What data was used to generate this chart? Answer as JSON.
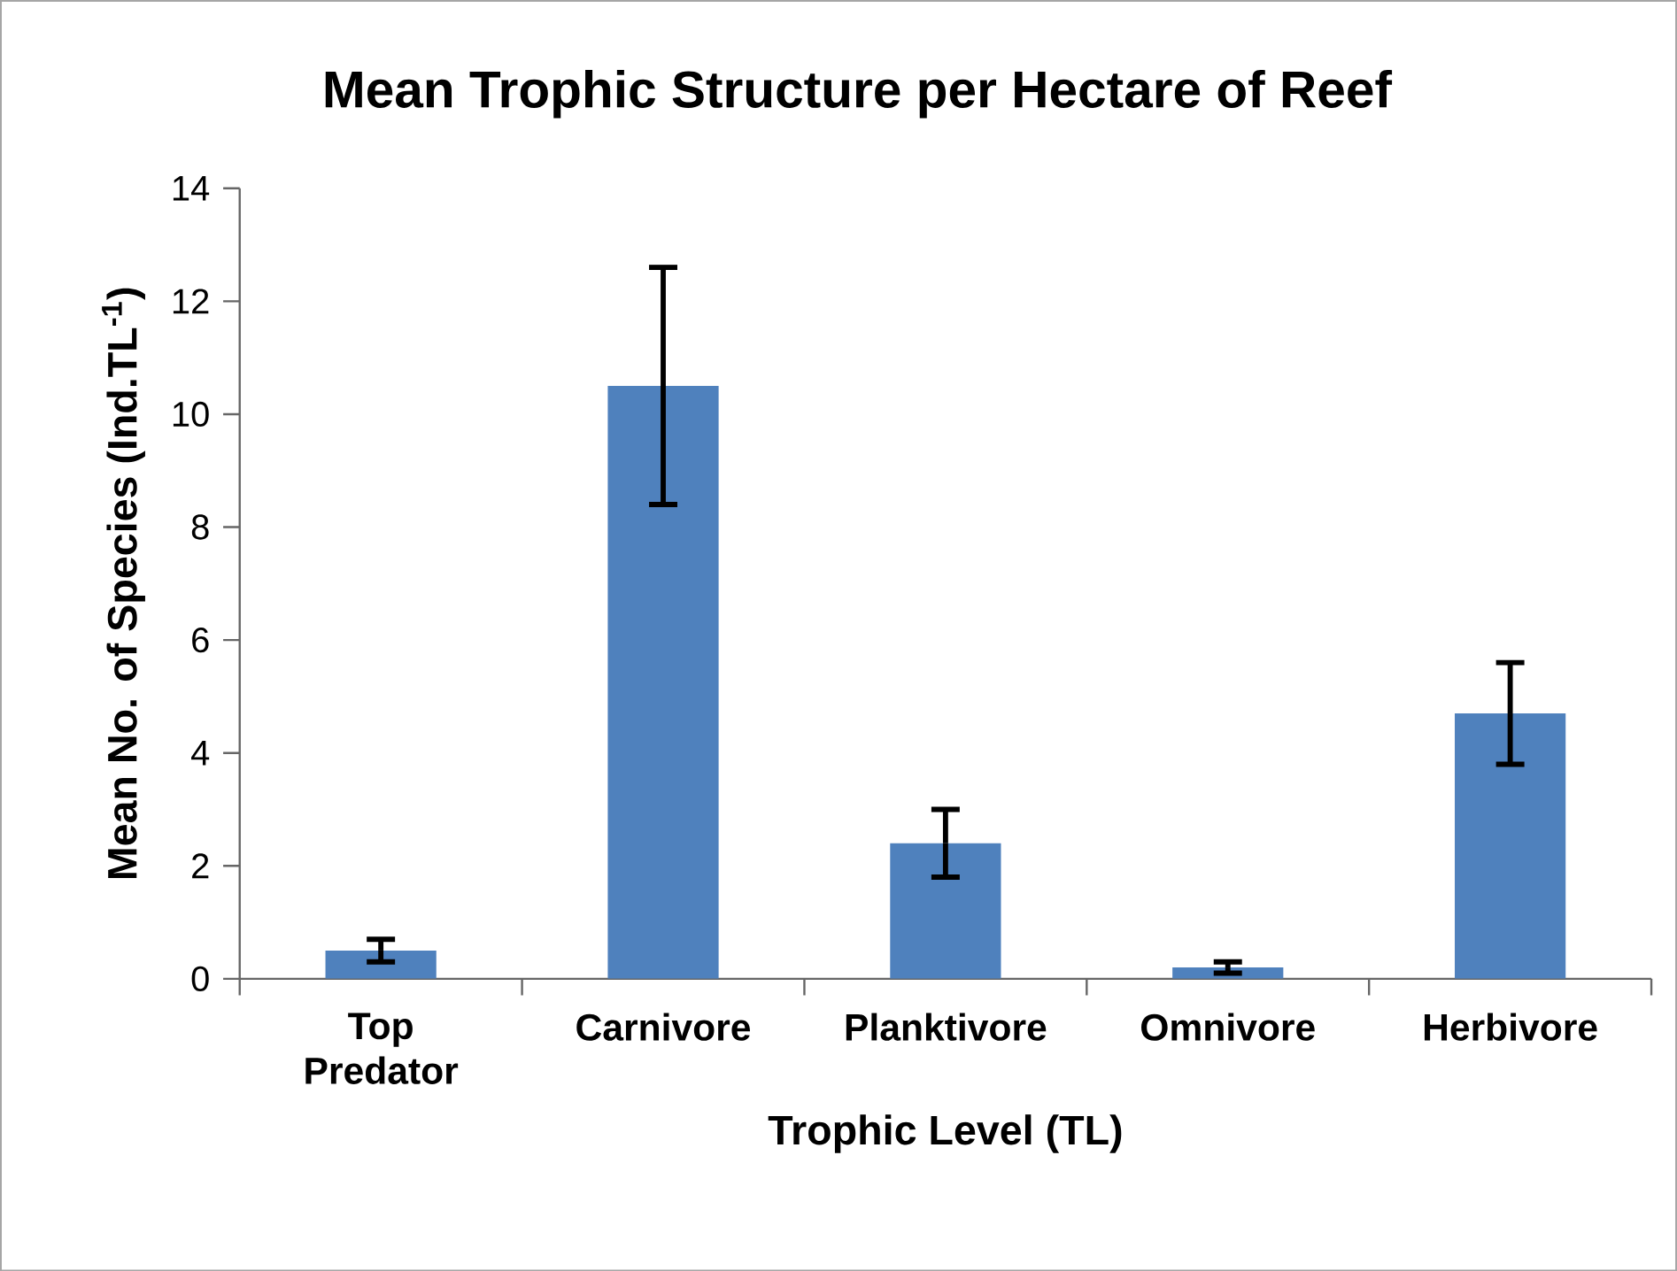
{
  "chart_data": {
    "type": "bar",
    "title": "Mean Trophic Structure per Hectare of Reef",
    "xlabel": "Trophic Level (TL)",
    "ylabel": "Mean No. of Species (Ind.TL$^{-1}$)",
    "categories": [
      "Top Predator",
      "Carnivore",
      "Planktivore",
      "Omnivore",
      "Herbivore"
    ],
    "values": [
      0.5,
      10.5,
      2.4,
      0.2,
      4.7
    ],
    "errors": [
      0.2,
      2.1,
      0.6,
      0.1,
      0.9
    ],
    "color": "#4f81bd",
    "ylim": [
      0,
      14
    ],
    "yticks": [
      0,
      2,
      4,
      6,
      8,
      10,
      12,
      14
    ],
    "grid": false
  }
}
